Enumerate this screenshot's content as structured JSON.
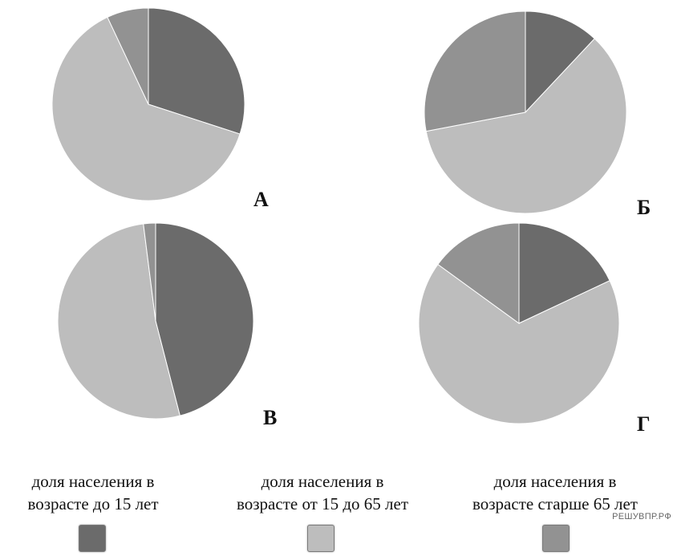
{
  "colors": {
    "under15": "#6b6b6b",
    "age15to65": "#bdbdbd",
    "over65": "#929292",
    "stroke": "#ffffff"
  },
  "chart_data": [
    {
      "type": "pie",
      "label": "А",
      "values": [
        30,
        63,
        7
      ],
      "categories": [
        "доля населения в возрасте до 15 лет",
        "доля населения в возрасте от 15 до 65 лет",
        "доля населения в возрасте старше 65 лет"
      ]
    },
    {
      "type": "pie",
      "label": "Б",
      "values": [
        12,
        60,
        28
      ],
      "categories": [
        "доля населения в возрасте до 15 лет",
        "доля населения в возрасте от 15 до 65 лет",
        "доля населения в возрасте старше 65 лет"
      ]
    },
    {
      "type": "pie",
      "label": "В",
      "values": [
        46,
        52,
        2
      ],
      "categories": [
        "доля населения в возрасте до 15 лет",
        "доля населения в возрасте от 15 до 65 лет",
        "доля населения в возрасте старше 65 лет"
      ]
    },
    {
      "type": "pie",
      "label": "Г",
      "values": [
        18,
        67,
        15
      ],
      "categories": [
        "доля населения в возрасте до 15 лет",
        "доля населения в возрасте от 15 до 65 лет",
        "доля населения в возрасте старше 65 лет"
      ]
    }
  ],
  "legend": [
    {
      "line1": "доля населения в",
      "line2": "возрасте до 15 лет"
    },
    {
      "line1": "доля населения в",
      "line2": "возрасте от 15 до 65 лет"
    },
    {
      "line1": "доля населения в",
      "line2": "возрасте старше 65 лет"
    }
  ],
  "watermark": "РЕШУВПР.РФ"
}
